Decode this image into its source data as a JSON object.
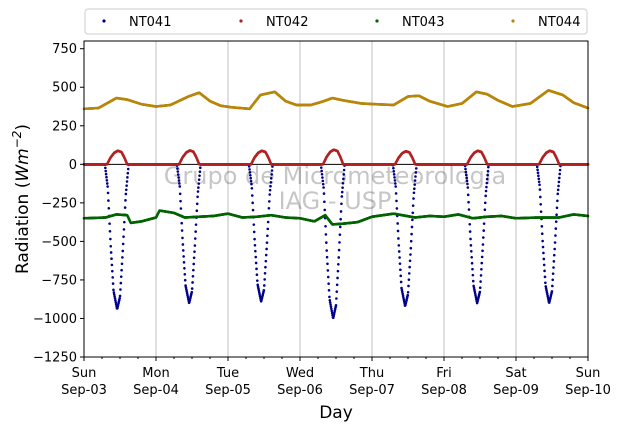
{
  "chart_data": {
    "type": "scatter",
    "xlabel": "Day",
    "ylabel": "Radiation (Wm⁻²)",
    "ylabel_parts": {
      "main": "Radiation (",
      "unit": "Wm",
      "exp": "−2",
      "close": ")"
    },
    "ylim": [
      -1250,
      800
    ],
    "y_ticks": [
      750,
      500,
      250,
      0,
      -250,
      -500,
      -750,
      -1000,
      -1250
    ],
    "y_tick_labels": [
      "750",
      "500",
      "250",
      "0",
      "−250",
      "−500",
      "−750",
      "−1000",
      "−1250"
    ],
    "x_range_days": [
      0,
      7
    ],
    "x_ticks": [
      {
        "day": 0,
        "line1": "Sun",
        "line2": "Sep-03"
      },
      {
        "day": 1,
        "line1": "Mon",
        "line2": "Sep-04"
      },
      {
        "day": 2,
        "line1": "Tue",
        "line2": "Sep-05"
      },
      {
        "day": 3,
        "line1": "Wed",
        "line2": "Sep-06"
      },
      {
        "day": 4,
        "line1": "Thu",
        "line2": "Sep-07"
      },
      {
        "day": 5,
        "line1": "Fri",
        "line2": "Sep-08"
      },
      {
        "day": 6,
        "line1": "Sat",
        "line2": "Sep-09"
      },
      {
        "day": 7,
        "line1": "Sun",
        "line2": "Sep-10"
      }
    ],
    "grid": "vertical",
    "legend_position": "top",
    "watermark": [
      "Grupo de Micrometeorologia",
      "IAG - USP"
    ],
    "series": [
      {
        "name": "NT041",
        "color": "#00008b",
        "day_profile": [
          [
            0,
            0
          ],
          [
            0.29,
            0
          ],
          [
            0.33,
            -150
          ],
          [
            0.37,
            -520
          ],
          [
            0.41,
            -820
          ],
          [
            0.46,
            -940
          ],
          [
            0.5,
            -860
          ],
          [
            0.54,
            -550
          ],
          [
            0.58,
            -200
          ],
          [
            0.62,
            0
          ],
          [
            1,
            0
          ]
        ],
        "peaks": [
          -940,
          -900,
          -890,
          -1000,
          -920,
          -900,
          -900
        ]
      },
      {
        "name": "NT042",
        "color": "#b22222",
        "day_profile": [
          [
            0,
            0
          ],
          [
            0.32,
            0
          ],
          [
            0.37,
            45
          ],
          [
            0.42,
            75
          ],
          [
            0.47,
            88
          ],
          [
            0.52,
            80
          ],
          [
            0.56,
            45
          ],
          [
            0.6,
            0
          ],
          [
            1,
            0
          ]
        ],
        "peaks": [
          88,
          90,
          88,
          95,
          85,
          88,
          88
        ]
      },
      {
        "name": "NT043",
        "color": "#006400",
        "profile": [
          [
            0,
            -350
          ],
          [
            0.3,
            -345
          ],
          [
            0.45,
            -325
          ],
          [
            0.6,
            -330
          ],
          [
            0.65,
            -380
          ],
          [
            0.8,
            -370
          ],
          [
            1.0,
            -345
          ],
          [
            1.05,
            -300
          ],
          [
            1.25,
            -315
          ],
          [
            1.4,
            -345
          ],
          [
            1.6,
            -340
          ],
          [
            1.8,
            -335
          ],
          [
            2.0,
            -320
          ],
          [
            2.2,
            -345
          ],
          [
            2.4,
            -340
          ],
          [
            2.6,
            -330
          ],
          [
            2.8,
            -345
          ],
          [
            3.0,
            -350
          ],
          [
            3.2,
            -370
          ],
          [
            3.35,
            -330
          ],
          [
            3.45,
            -390
          ],
          [
            3.6,
            -385
          ],
          [
            3.8,
            -375
          ],
          [
            4.0,
            -340
          ],
          [
            4.3,
            -320
          ],
          [
            4.6,
            -345
          ],
          [
            4.8,
            -335
          ],
          [
            5.0,
            -340
          ],
          [
            5.2,
            -325
          ],
          [
            5.4,
            -350
          ],
          [
            5.6,
            -340
          ],
          [
            5.8,
            -335
          ],
          [
            6.0,
            -350
          ],
          [
            6.3,
            -345
          ],
          [
            6.6,
            -345
          ],
          [
            6.8,
            -325
          ],
          [
            7.0,
            -335
          ]
        ]
      },
      {
        "name": "NT044",
        "color": "#b8860b",
        "profile": [
          [
            0,
            360
          ],
          [
            0.2,
            365
          ],
          [
            0.45,
            430
          ],
          [
            0.6,
            420
          ],
          [
            0.8,
            390
          ],
          [
            1.0,
            375
          ],
          [
            1.2,
            385
          ],
          [
            1.45,
            440
          ],
          [
            1.6,
            465
          ],
          [
            1.75,
            410
          ],
          [
            1.9,
            380
          ],
          [
            2.05,
            370
          ],
          [
            2.3,
            360
          ],
          [
            2.45,
            450
          ],
          [
            2.65,
            470
          ],
          [
            2.8,
            410
          ],
          [
            2.95,
            385
          ],
          [
            3.15,
            385
          ],
          [
            3.3,
            405
          ],
          [
            3.45,
            430
          ],
          [
            3.6,
            415
          ],
          [
            3.85,
            395
          ],
          [
            4.05,
            390
          ],
          [
            4.3,
            385
          ],
          [
            4.5,
            440
          ],
          [
            4.65,
            445
          ],
          [
            4.8,
            410
          ],
          [
            5.05,
            375
          ],
          [
            5.25,
            395
          ],
          [
            5.45,
            470
          ],
          [
            5.6,
            455
          ],
          [
            5.75,
            415
          ],
          [
            5.95,
            375
          ],
          [
            6.2,
            395
          ],
          [
            6.45,
            480
          ],
          [
            6.65,
            450
          ],
          [
            6.8,
            400
          ],
          [
            7.0,
            365
          ]
        ]
      }
    ]
  }
}
